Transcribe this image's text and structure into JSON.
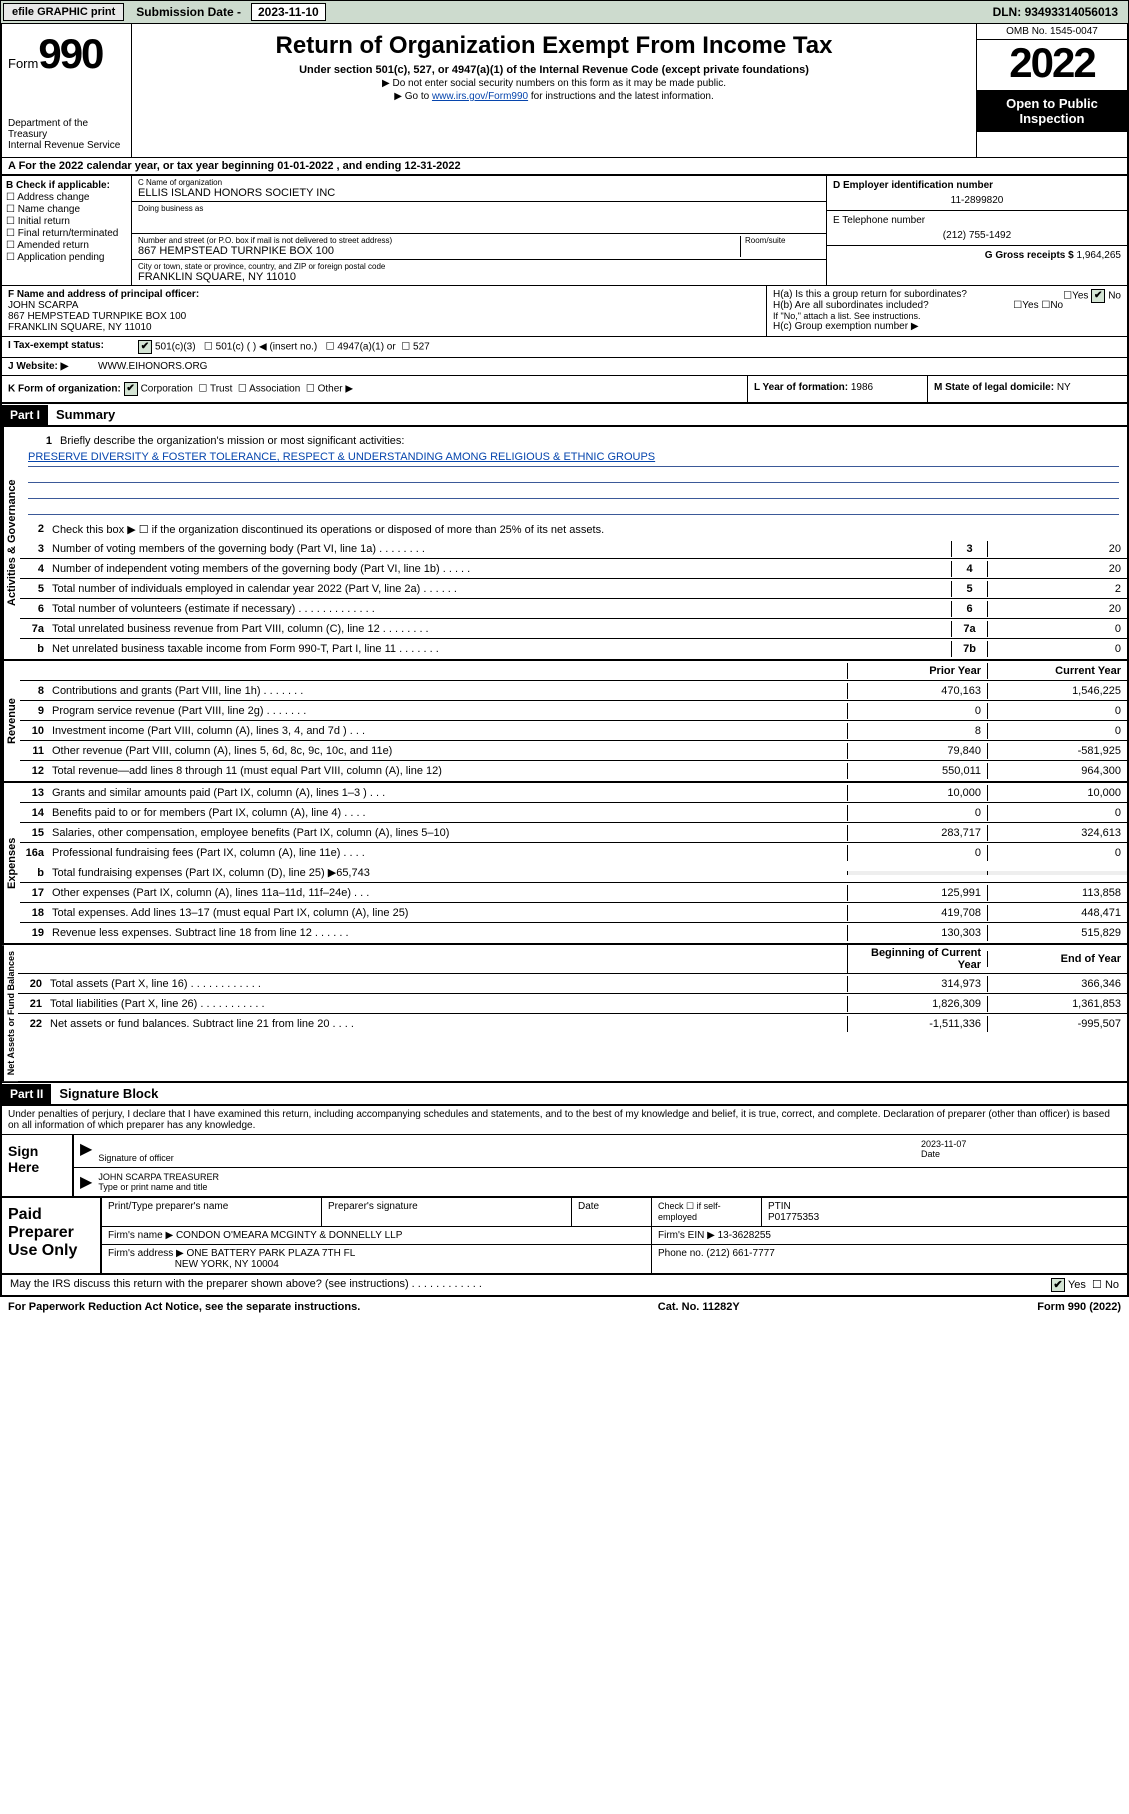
{
  "topbar": {
    "efile": "efile GRAPHIC print",
    "submission_lbl": "Submission Date - ",
    "submission_date": "2023-11-10",
    "dln_lbl": "DLN: ",
    "dln": "93493314056013"
  },
  "header": {
    "form_word": "Form",
    "form_num": "990",
    "dept": "Department of the Treasury",
    "irs": "Internal Revenue Service",
    "title": "Return of Organization Exempt From Income Tax",
    "sub": "Under section 501(c), 527, or 4947(a)(1) of the Internal Revenue Code (except private foundations)",
    "note1": "▶ Do not enter social security numbers on this form as it may be made public.",
    "note2_pre": "▶ Go to ",
    "note2_link": "www.irs.gov/Form990",
    "note2_post": " for instructions and the latest information.",
    "omb": "OMB No. 1545-0047",
    "year": "2022",
    "open1": "Open to Public",
    "open2": "Inspection"
  },
  "line_a": "A For the 2022 calendar year, or tax year beginning 01-01-2022    , and ending 12-31-2022",
  "col_b": {
    "hdr": "B Check if applicable:",
    "opts": [
      "Address change",
      "Name change",
      "Initial return",
      "Final return/terminated",
      "Amended return",
      "Application pending"
    ]
  },
  "col_c": {
    "name_lbl": "C Name of organization",
    "name": "ELLIS ISLAND HONORS SOCIETY INC",
    "dba_lbl": "Doing business as",
    "dba": "",
    "addr_lbl": "Number and street (or P.O. box if mail is not delivered to street address)",
    "room_lbl": "Room/suite",
    "addr": "867 HEMPSTEAD TURNPIKE BOX 100",
    "city_lbl": "City or town, state or province, country, and ZIP or foreign postal code",
    "city": "FRANKLIN SQUARE, NY  11010"
  },
  "col_de": {
    "d_lbl": "D Employer identification number",
    "ein": "11-2899820",
    "e_lbl": "E Telephone number",
    "phone": "(212) 755-1492",
    "g_lbl": "G Gross receipts $ ",
    "gross": "1,964,265"
  },
  "row_f": {
    "f_lbl": "F Name and address of principal officer:",
    "officer": "JOHN SCARPA",
    "addr1": "867 HEMPSTEAD TURNPIKE BOX 100",
    "addr2": "FRANKLIN SQUARE, NY  11010",
    "ha": "H(a)  Is this a group return for subordinates?",
    "hb": "H(b)  Are all subordinates included?",
    "hb_note": "If \"No,\" attach a list. See instructions.",
    "hc": "H(c)  Group exemption number ▶",
    "yes": "Yes",
    "no": "No"
  },
  "row_i": {
    "lbl": "I    Tax-exempt status:",
    "c3": "501(c)(3)",
    "c": "501(c) ( )   ◀ (insert no.)",
    "a1": "4947(a)(1) or",
    "s527": "527"
  },
  "row_j": {
    "lbl": "J   Website: ▶",
    "val": "WWW.EIHONORS.ORG"
  },
  "row_k": {
    "lbl": "K Form of organization:",
    "corp": "Corporation",
    "trust": "Trust",
    "assoc": "Association",
    "other": "Other ▶"
  },
  "row_l": {
    "lbl": "L Year of formation: ",
    "val": "1986"
  },
  "row_m": {
    "lbl": "M State of legal domicile: ",
    "val": "NY"
  },
  "part1": {
    "hdr": "Part I",
    "title": "Summary"
  },
  "summary": {
    "q1": "Briefly describe the organization's mission or most significant activities:",
    "mission": "PRESERVE DIVERSITY & FOSTER TOLERANCE, RESPECT & UNDERSTANDING AMONG RELIGIOUS & ETHNIC GROUPS",
    "q2": "Check this box ▶ ☐  if the organization discontinued its operations or disposed of more than 25% of its net assets.",
    "rows_ag": [
      {
        "n": "3",
        "d": "Number of voting members of the governing body (Part VI, line 1a)   .   .   .   .   .   .   .   .",
        "b": "3",
        "v": "20"
      },
      {
        "n": "4",
        "d": "Number of independent voting members of the governing body (Part VI, line 1b)   .   .   .   .   .",
        "b": "4",
        "v": "20"
      },
      {
        "n": "5",
        "d": "Total number of individuals employed in calendar year 2022 (Part V, line 2a)   .   .   .   .   .   .",
        "b": "5",
        "v": "2"
      },
      {
        "n": "6",
        "d": "Total number of volunteers (estimate if necessary)   .   .   .   .   .   .   .   .   .   .   .   .   .",
        "b": "6",
        "v": "20"
      },
      {
        "n": "7a",
        "d": "Total unrelated business revenue from Part VIII, column (C), line 12   .   .   .   .   .   .   .   .",
        "b": "7a",
        "v": "0"
      },
      {
        "n": "b",
        "d": "Net unrelated business taxable income from Form 990-T, Part I, line 11   .   .   .   .   .   .   .",
        "b": "7b",
        "v": "0"
      }
    ],
    "hdr_prior": "Prior Year",
    "hdr_current": "Current Year",
    "rows_rev": [
      {
        "n": "8",
        "d": "Contributions and grants (Part VIII, line 1h)   .   .   .   .   .   .   .",
        "p": "470,163",
        "c": "1,546,225"
      },
      {
        "n": "9",
        "d": "Program service revenue (Part VIII, line 2g)   .   .   .   .   .   .   .",
        "p": "0",
        "c": "0"
      },
      {
        "n": "10",
        "d": "Investment income (Part VIII, column (A), lines 3, 4, and 7d )   .   .   .",
        "p": "8",
        "c": "0"
      },
      {
        "n": "11",
        "d": "Other revenue (Part VIII, column (A), lines 5, 6d, 8c, 9c, 10c, and 11e)",
        "p": "79,840",
        "c": "-581,925"
      },
      {
        "n": "12",
        "d": "Total revenue—add lines 8 through 11 (must equal Part VIII, column (A), line 12)",
        "p": "550,011",
        "c": "964,300"
      }
    ],
    "rows_exp": [
      {
        "n": "13",
        "d": "Grants and similar amounts paid (Part IX, column (A), lines 1–3 )   .   .   .",
        "p": "10,000",
        "c": "10,000"
      },
      {
        "n": "14",
        "d": "Benefits paid to or for members (Part IX, column (A), line 4)   .   .   .   .",
        "p": "0",
        "c": "0"
      },
      {
        "n": "15",
        "d": "Salaries, other compensation, employee benefits (Part IX, column (A), lines 5–10)",
        "p": "283,717",
        "c": "324,613"
      },
      {
        "n": "16a",
        "d": "Professional fundraising fees (Part IX, column (A), line 11e)   .   .   .   .",
        "p": "0",
        "c": "0"
      }
    ],
    "line16b": {
      "n": "b",
      "d": "Total fundraising expenses (Part IX, column (D), line 25) ▶65,743"
    },
    "rows_exp2": [
      {
        "n": "17",
        "d": "Other expenses (Part IX, column (A), lines 11a–11d, 11f–24e)   .   .   .",
        "p": "125,991",
        "c": "113,858"
      },
      {
        "n": "18",
        "d": "Total expenses. Add lines 13–17 (must equal Part IX, column (A), line 25)",
        "p": "419,708",
        "c": "448,471"
      },
      {
        "n": "19",
        "d": "Revenue less expenses. Subtract line 18 from line 12   .   .   .   .   .   .",
        "p": "130,303",
        "c": "515,829"
      }
    ],
    "hdr_begin": "Beginning of Current Year",
    "hdr_end": "End of Year",
    "rows_na": [
      {
        "n": "20",
        "d": "Total assets (Part X, line 16)   .   .   .   .   .   .   .   .   .   .   .   .",
        "p": "314,973",
        "c": "366,346"
      },
      {
        "n": "21",
        "d": "Total liabilities (Part X, line 26)   .   .   .   .   .   .   .   .   .   .   .",
        "p": "1,826,309",
        "c": "1,361,853"
      },
      {
        "n": "22",
        "d": "Net assets or fund balances. Subtract line 21 from line 20   .   .   .   .",
        "p": "-1,511,336",
        "c": "-995,507"
      }
    ]
  },
  "vtabs": {
    "ag": "Activities & Governance",
    "rev": "Revenue",
    "exp": "Expenses",
    "na": "Net Assets or Fund Balances"
  },
  "part2": {
    "hdr": "Part II",
    "title": "Signature Block"
  },
  "sig": {
    "decl": "Under penalties of perjury, I declare that I have examined this return, including accompanying schedules and statements, and to the best of my knowledge and belief, it is true, correct, and complete. Declaration of preparer (other than officer) is based on all information of which preparer has any knowledge.",
    "here": "Sign Here",
    "date": "2023-11-07",
    "sig_lbl": "Signature of officer",
    "date_lbl": "Date",
    "name": "JOHN SCARPA  TREASURER",
    "name_lbl": "Type or print name and title"
  },
  "prep": {
    "lbl": "Paid Preparer Use Only",
    "h1": "Print/Type preparer's name",
    "h2": "Preparer's signature",
    "h3": "Date",
    "h4_pre": "Check ☐ if self-employed",
    "h5": "PTIN",
    "ptin": "P01775353",
    "firm_lbl": "Firm's name     ▶",
    "firm": "CONDON O'MEARA MCGINTY & DONNELLY LLP",
    "ein_lbl": "Firm's EIN ▶",
    "ein": "13-3628255",
    "addr_lbl": "Firm's address ▶",
    "addr1": "ONE BATTERY PARK PLAZA 7TH FL",
    "addr2": "NEW YORK, NY  10004",
    "phone_lbl": "Phone no. ",
    "phone": "(212) 661-7777"
  },
  "footer": {
    "q": "May the IRS discuss this return with the preparer shown above? (see instructions)   .   .   .   .   .   .   .   .   .   .   .   .",
    "yes": "Yes",
    "no": "No"
  },
  "bottom": {
    "pra": "For Paperwork Reduction Act Notice, see the separate instructions.",
    "cat": "Cat. No. 11282Y",
    "form": "Form 990 (2022)"
  },
  "colors": {
    "topbar_bg": "#cddbce",
    "link": "#0645ad",
    "checkbox_bg": "#d4e4d4"
  }
}
